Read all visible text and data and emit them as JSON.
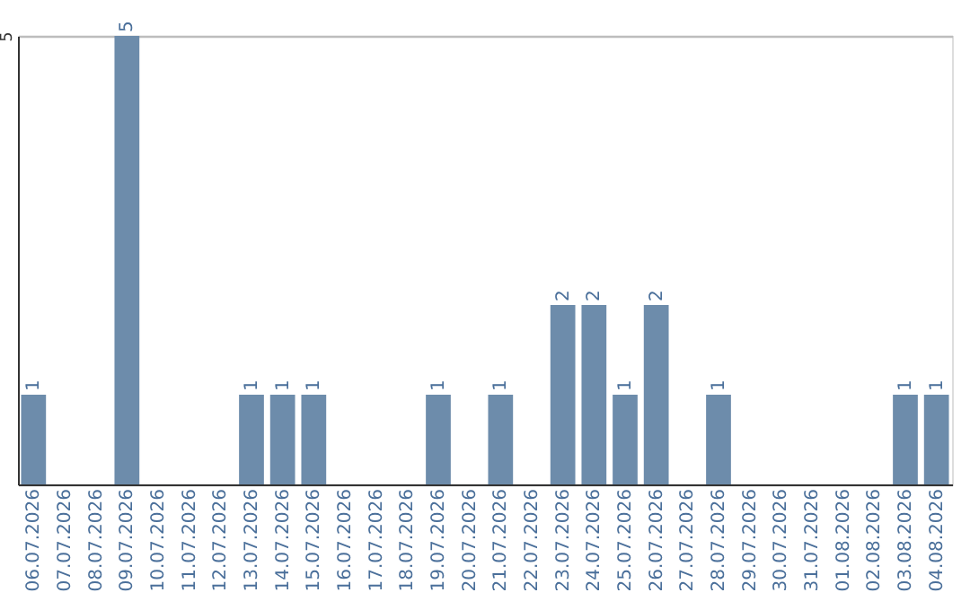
{
  "chart_data": {
    "type": "bar",
    "categories": [
      "06.07.2026",
      "07.07.2026",
      "08.07.2026",
      "09.07.2026",
      "10.07.2026",
      "11.07.2026",
      "12.07.2026",
      "13.07.2026",
      "14.07.2026",
      "15.07.2026",
      "16.07.2026",
      "17.07.2026",
      "18.07.2026",
      "19.07.2026",
      "20.07.2026",
      "21.07.2026",
      "22.07.2026",
      "23.07.2026",
      "24.07.2026",
      "25.07.2026",
      "26.07.2026",
      "27.07.2026",
      "28.07.2026",
      "29.07.2026",
      "30.07.2026",
      "31.07.2026",
      "01.08.2026",
      "02.08.2026",
      "03.08.2026",
      "04.08.2026"
    ],
    "values": [
      1,
      null,
      null,
      5,
      null,
      null,
      null,
      1,
      1,
      1,
      null,
      null,
      null,
      1,
      null,
      1,
      null,
      2,
      2,
      1,
      2,
      null,
      1,
      null,
      null,
      null,
      null,
      null,
      1,
      1
    ],
    "color": "#6d8cab",
    "ylim": [
      0,
      5
    ],
    "yticks": [
      {
        "value": 0,
        "label": null
      },
      5
    ],
    "grid": "y",
    "data_labels": true
  }
}
